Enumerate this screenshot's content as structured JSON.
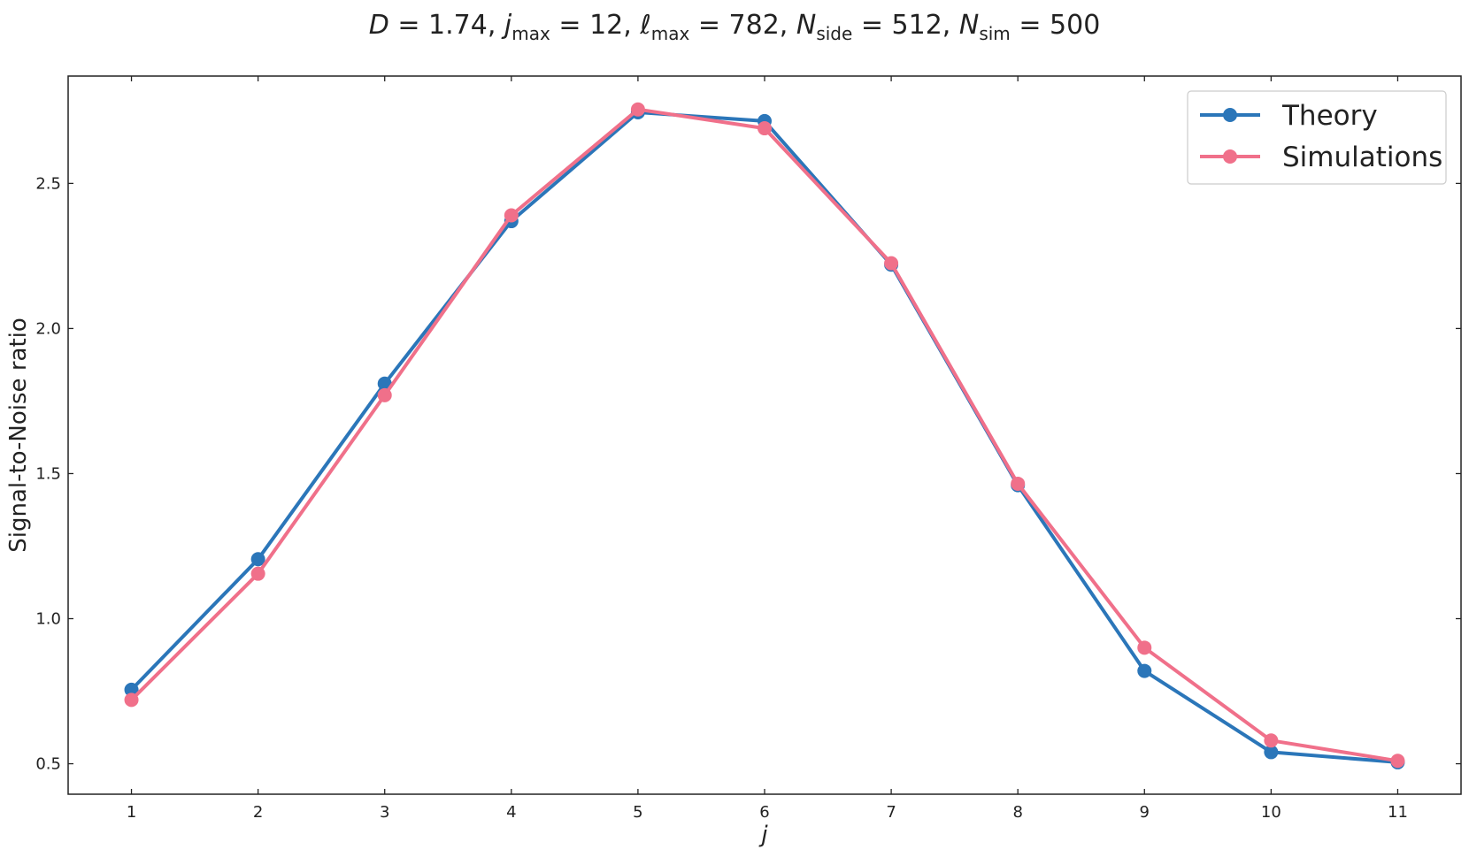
{
  "chart_data": {
    "type": "line",
    "title": {
      "D_var": "D",
      "D_val": "1.74",
      "jmax_var": "j",
      "jmax_sub": "max",
      "jmax_val": "12",
      "lmax_var": "ℓ",
      "lmax_sub": "max",
      "lmax_val": "782",
      "nside_var": "N",
      "nside_sub": "side",
      "nside_val": "512",
      "nsim_var": "N",
      "nsim_sub": "sim",
      "nsim_val": "500"
    },
    "xlabel": "j",
    "ylabel": "Signal-to-Noise ratio",
    "x": [
      1,
      2,
      3,
      4,
      5,
      6,
      7,
      8,
      9,
      10,
      11
    ],
    "xticks": [
      "1",
      "2",
      "3",
      "4",
      "5",
      "6",
      "7",
      "8",
      "9",
      "10",
      "11"
    ],
    "yticks": [
      0.5,
      1.0,
      1.5,
      2.0,
      2.5
    ],
    "ytick_labels": [
      "0.5",
      "1.0",
      "1.5",
      "2.0",
      "2.5"
    ],
    "xlim": [
      0.5,
      11.5
    ],
    "ylim": [
      0.395,
      2.87
    ],
    "grid": false,
    "legend_position": "top-right",
    "series": [
      {
        "name": "Theory",
        "color": "#2b76b9",
        "values": [
          0.755,
          1.205,
          1.81,
          2.37,
          2.745,
          2.715,
          2.22,
          1.46,
          0.82,
          0.54,
          0.505
        ]
      },
      {
        "name": "Simulations",
        "color": "#f0708a",
        "values": [
          0.72,
          1.155,
          1.77,
          2.39,
          2.755,
          2.69,
          2.225,
          1.465,
          0.9,
          0.58,
          0.51
        ]
      }
    ]
  }
}
